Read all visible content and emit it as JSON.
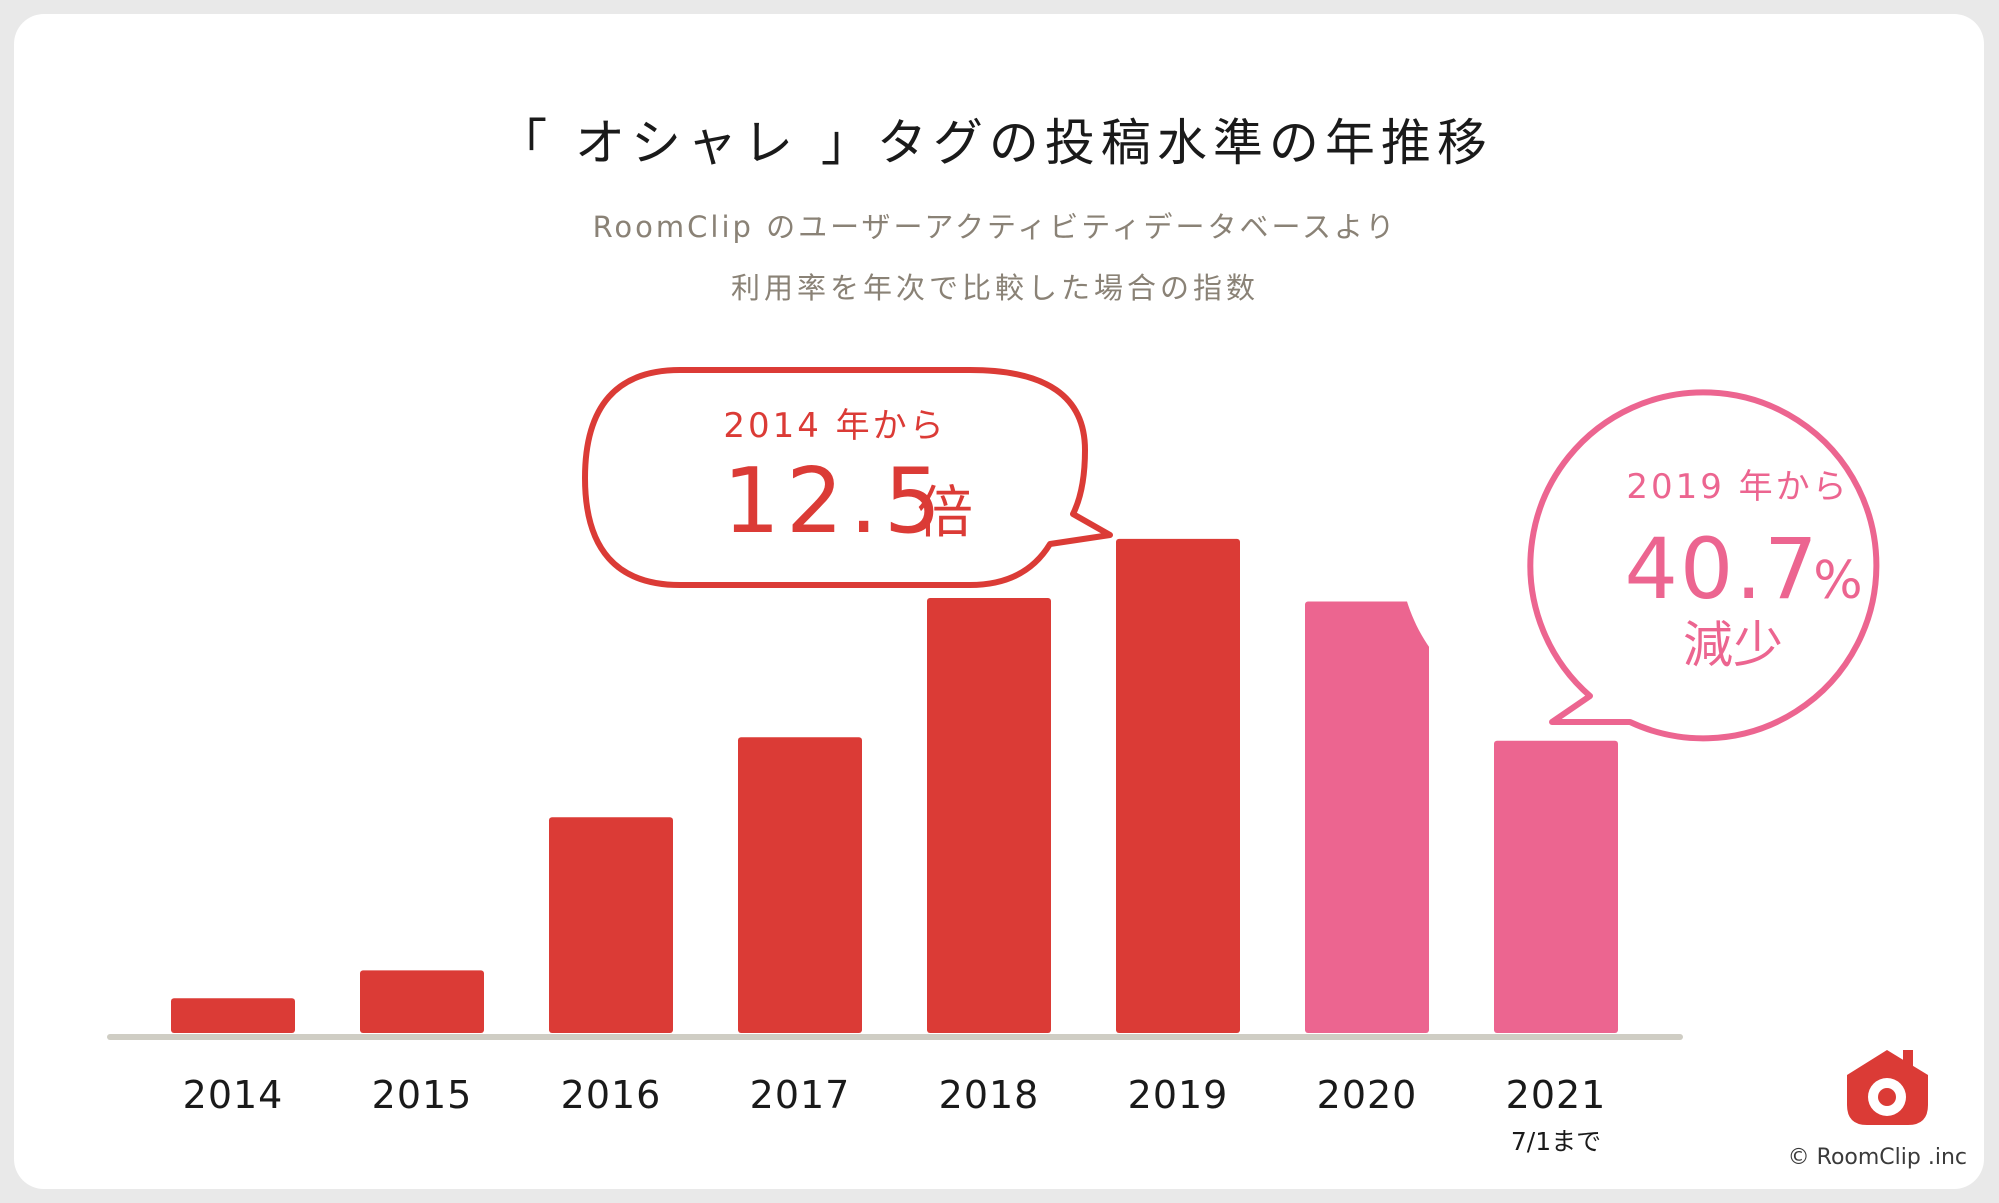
{
  "chart_data": {
    "type": "bar",
    "title": "「 オシャレ 」タグの投稿水準の年推移",
    "subtitle": [
      "RoomClip のユーザーアクティビティデータベースより",
      "利用率を年次で比較した場合の指数"
    ],
    "categories": [
      "2014",
      "2015",
      "2016",
      "2017",
      "2018",
      "2019",
      "2020",
      "2021"
    ],
    "category_notes": [
      "",
      "",
      "",
      "",
      "",
      "",
      "",
      "7/1まで"
    ],
    "values": [
      1,
      1.8,
      6.2,
      8.5,
      12.5,
      14.2,
      12.4,
      8.4
    ],
    "highlight_colors": [
      "#db3b36",
      "#db3b36",
      "#db3b36",
      "#db3b36",
      "#db3b36",
      "#db3b36",
      "#ec6590",
      "#ec6590"
    ],
    "ylim": [
      0,
      14.8
    ],
    "grid": false,
    "annotations": [
      {
        "line1": "2014 年から",
        "big": "12.5",
        "unit": "倍",
        "color": "#db3b36"
      },
      {
        "line1": "2019 年から",
        "big": "40.7",
        "pct": "%",
        "line3": "減少",
        "color": "#ec6590"
      }
    ]
  },
  "footer": {
    "logo_icon": "roomclip-house-camera-icon",
    "copyright": "© RoomClip .inc"
  },
  "colors": {
    "red": "#db3b36",
    "pink": "#ec6590",
    "axis": "#cfcdc4",
    "subtitle": "#8a8276",
    "text": "#1a1a1a"
  }
}
